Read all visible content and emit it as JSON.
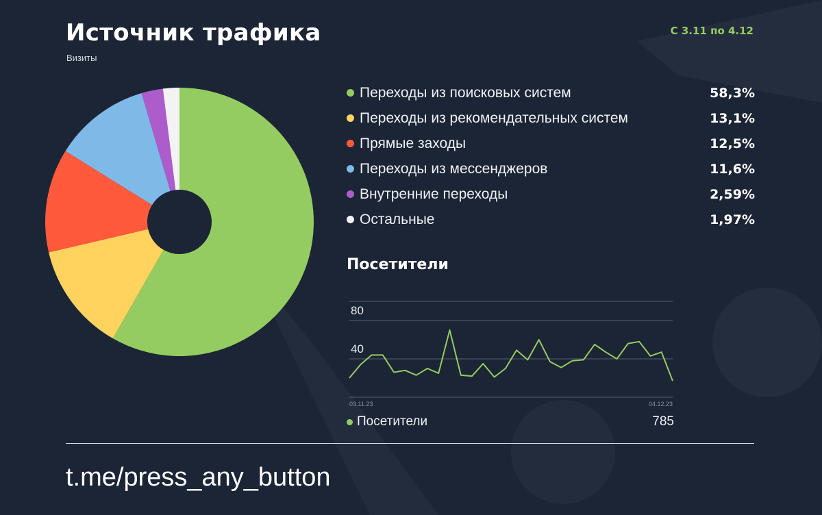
{
  "header": {
    "title": "Источник трафика",
    "subtitle": "Визиты",
    "period": "С 3.11 по 4.12"
  },
  "chart_data": [
    {
      "type": "pie",
      "variant": "donut",
      "title": "Источник трафика",
      "subtitle": "Визиты",
      "slices": [
        {
          "label": "Переходы из поисковых систем",
          "value": 58.3,
          "display": "58,3%",
          "color": "#95cc62"
        },
        {
          "label": "Переходы из рекомендательных систем",
          "value": 13.1,
          "display": "13,1%",
          "color": "#ffd35e"
        },
        {
          "label": "Прямые заходы",
          "value": 12.5,
          "display": "12,5%",
          "color": "#ff5a3c"
        },
        {
          "label": "Переходы из мессенджеров",
          "value": 11.6,
          "display": "11,6%",
          "color": "#7eb9e8"
        },
        {
          "label": "Внутренние переходы",
          "value": 2.59,
          "display": "2,59%",
          "color": "#ad5ccc"
        },
        {
          "label": "Остальные",
          "value": 1.97,
          "display": "1,97%",
          "color": "#f3f3f3"
        }
      ],
      "legend_position": "right"
    },
    {
      "type": "line",
      "title": "Посетители",
      "x_start_label": "03.11.23",
      "x_end_label": "04.12.23",
      "y_ticks": [
        40,
        80
      ],
      "ylim": [
        0,
        100
      ],
      "grid": true,
      "color": "#95cc62",
      "series": [
        {
          "name": "Посетители",
          "total": "785",
          "values": [
            20,
            34,
            44,
            44,
            26,
            28,
            23,
            30,
            25,
            70,
            23,
            22,
            35,
            21,
            30,
            49,
            39,
            60,
            37,
            31,
            38,
            39,
            55,
            47,
            40,
            56,
            58,
            43,
            47,
            17
          ]
        }
      ]
    }
  ]
}
